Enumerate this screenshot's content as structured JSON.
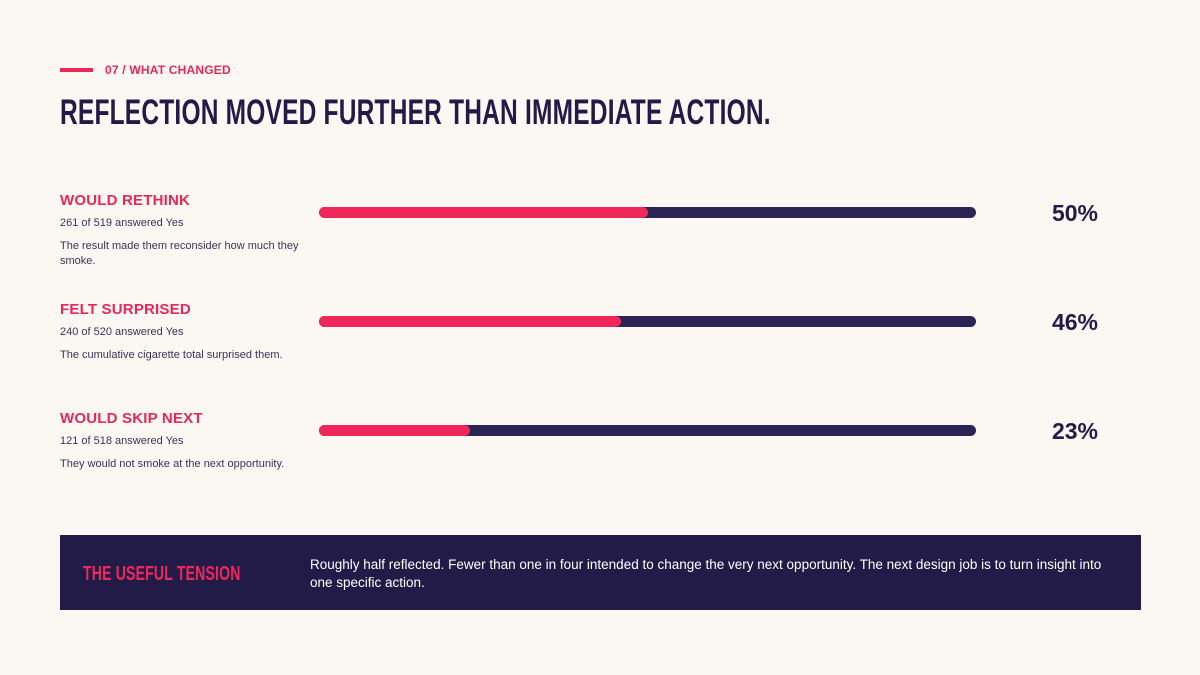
{
  "kicker": "07 / WHAT CHANGED",
  "headline": "REFLECTION MOVED FURTHER THAN IMMEDIATE ACTION.",
  "colors": {
    "accent": "#f0275a",
    "navy": "#231b47",
    "track": "#2c2453",
    "background": "#fbf7f3"
  },
  "chart_data": {
    "type": "bar",
    "orientation": "horizontal",
    "ylim": [
      0,
      100
    ],
    "categories": [
      "WOULD RETHINK",
      "FELT SURPRISED",
      "WOULD SKIP NEXT"
    ],
    "values": [
      50,
      46,
      23
    ],
    "rows": [
      {
        "label": "WOULD RETHINK",
        "count": "261 of 519 answered Yes",
        "desc": "The result made them reconsider how much they smoke.",
        "pct_label": "50%",
        "value": 50
      },
      {
        "label": "FELT SURPRISED",
        "count": "240 of 520 answered Yes",
        "desc": "The cumulative cigarette total surprised them.",
        "pct_label": "46%",
        "value": 46
      },
      {
        "label": "WOULD SKIP NEXT",
        "count": "121 of 518 answered Yes",
        "desc": "They would not smoke at the next opportunity.",
        "pct_label": "23%",
        "value": 23
      }
    ]
  },
  "callout": {
    "title": "THE USEFUL TENSION",
    "text": "Roughly half reflected. Fewer than one in four intended to change the very next opportunity. The next design job is to turn insight into one specific action."
  }
}
